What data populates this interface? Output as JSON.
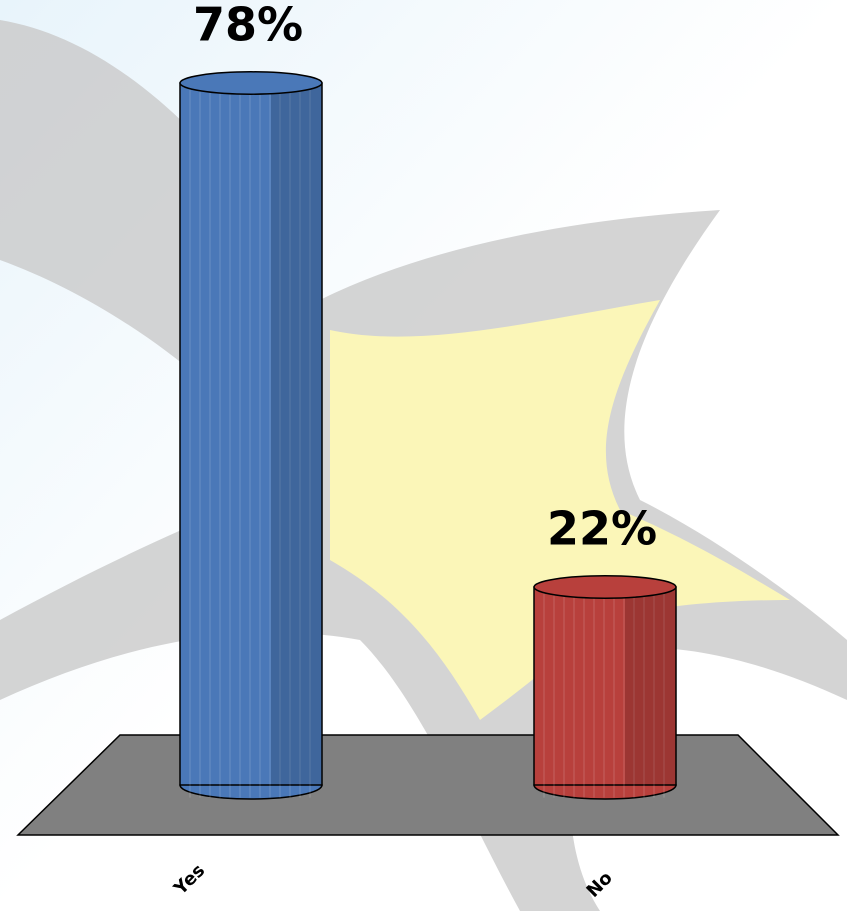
{
  "chart_data": {
    "type": "bar",
    "categories": [
      "Yes",
      "No"
    ],
    "values": [
      78,
      22
    ],
    "value_labels": [
      "78%",
      "22%"
    ],
    "colors": [
      "#4a78b8",
      "#b8403c"
    ]
  }
}
